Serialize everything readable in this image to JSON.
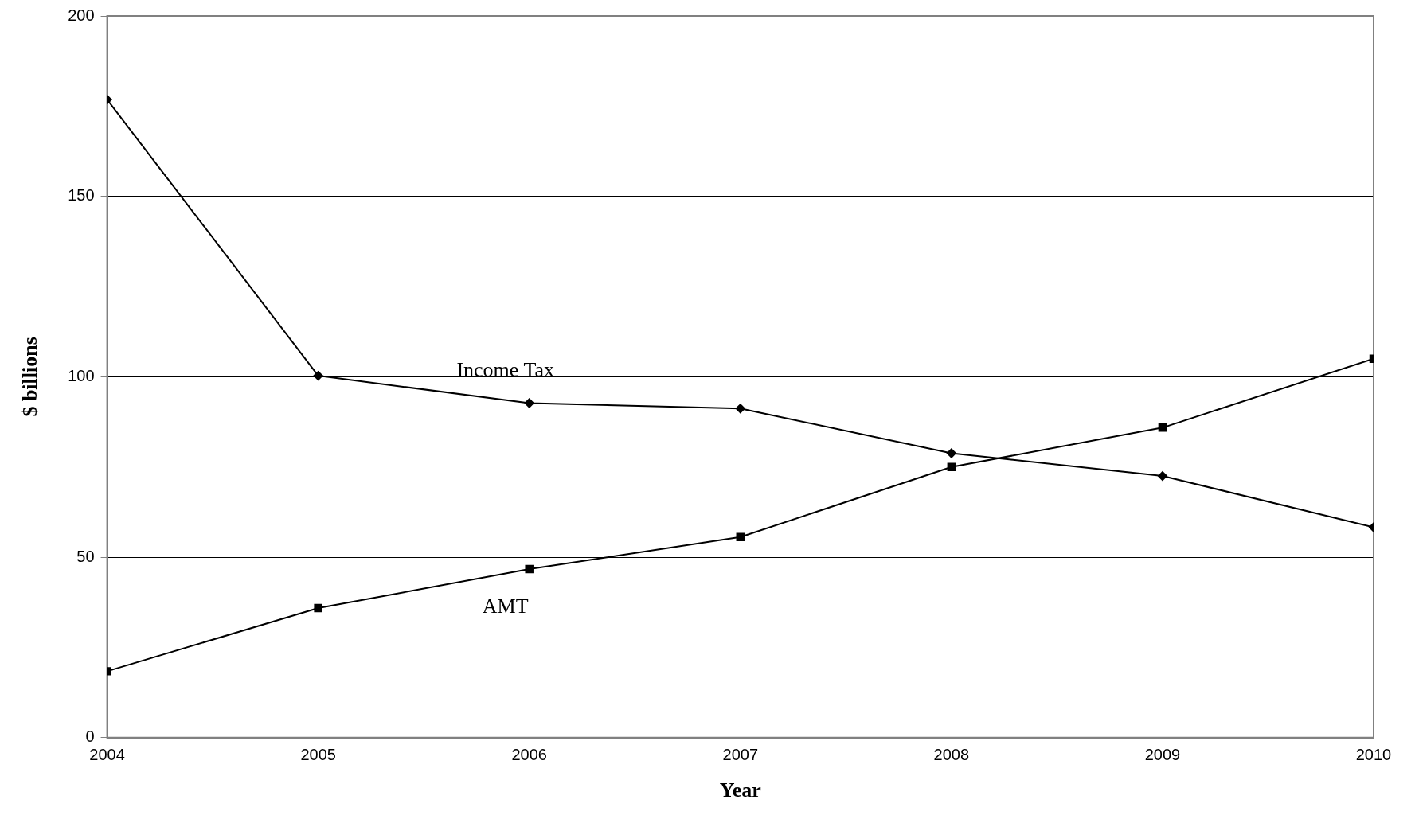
{
  "chart_data": {
    "type": "line",
    "xlabel": "Year",
    "ylabel": "$ billions",
    "x": [
      2004,
      2005,
      2006,
      2007,
      2008,
      2009,
      2010
    ],
    "xlim": [
      2004,
      2010
    ],
    "xticks": [
      2004,
      2005,
      2006,
      2007,
      2008,
      2009,
      2010
    ],
    "ylim": [
      0,
      200
    ],
    "yticks": [
      0,
      50,
      100,
      150,
      200
    ],
    "grid": "y",
    "legend": false,
    "series": [
      {
        "name": "Income Tax",
        "color": "#000000",
        "marker": "diamond",
        "values": [
          176.8,
          100.3,
          92.7,
          91.2,
          78.8,
          72.5,
          58.3
        ]
      },
      {
        "name": "AMT",
        "color": "#000000",
        "marker": "square",
        "values": [
          18.4,
          35.9,
          46.7,
          55.6,
          75,
          85.9,
          105
        ]
      }
    ]
  }
}
